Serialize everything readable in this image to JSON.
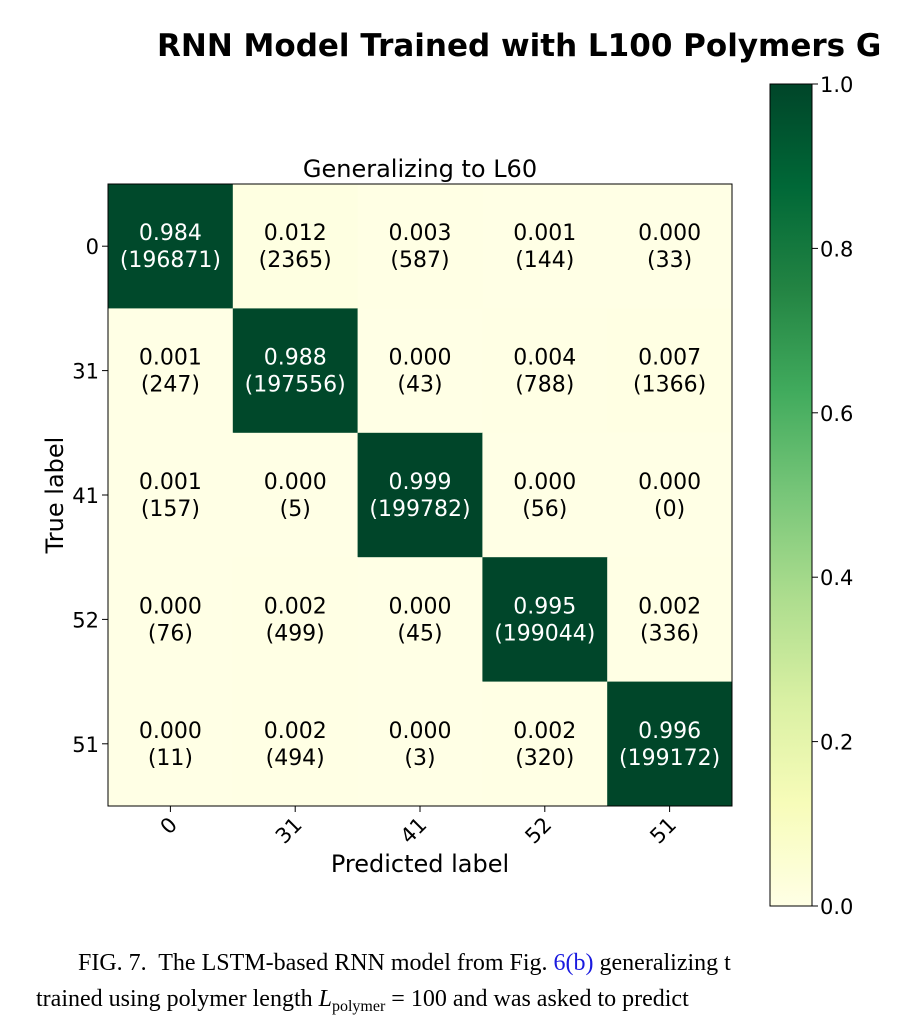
{
  "chart_data": {
    "type": "heatmap",
    "suptitle": "RNN Model Trained with L100 Polymers G",
    "title": "Generalizing to L60",
    "xlabel": "Predicted label",
    "ylabel": "True label",
    "x_categories": [
      "0",
      "31",
      "41",
      "52",
      "51"
    ],
    "y_categories": [
      "0",
      "31",
      "41",
      "52",
      "51"
    ],
    "values": [
      [
        0.984,
        0.012,
        0.003,
        0.001,
        0.0
      ],
      [
        0.001,
        0.988,
        0.0,
        0.004,
        0.007
      ],
      [
        0.001,
        0.0,
        0.999,
        0.0,
        0.0
      ],
      [
        0.0,
        0.002,
        0.0,
        0.995,
        0.002
      ],
      [
        0.0,
        0.002,
        0.0,
        0.002,
        0.996
      ]
    ],
    "value_labels": [
      [
        "0.984",
        "0.012",
        "0.003",
        "0.001",
        "0.000"
      ],
      [
        "0.001",
        "0.988",
        "0.000",
        "0.004",
        "0.007"
      ],
      [
        "0.001",
        "0.000",
        "0.999",
        "0.000",
        "0.000"
      ],
      [
        "0.000",
        "0.002",
        "0.000",
        "0.995",
        "0.002"
      ],
      [
        "0.000",
        "0.002",
        "0.000",
        "0.002",
        "0.996"
      ]
    ],
    "counts": [
      [
        "(196871)",
        "(2365)",
        "(587)",
        "(144)",
        "(33)"
      ],
      [
        "(247)",
        "(197556)",
        "(43)",
        "(788)",
        "(1366)"
      ],
      [
        "(157)",
        "(5)",
        "(199782)",
        "(56)",
        "(0)"
      ],
      [
        "(76)",
        "(499)",
        "(45)",
        "(199044)",
        "(336)"
      ],
      [
        "(11)",
        "(494)",
        "(3)",
        "(320)",
        "(199172)"
      ]
    ],
    "colorbar": {
      "range": [
        0,
        1
      ],
      "ticks": [
        0.0,
        0.2,
        0.4,
        0.6,
        0.8,
        1.0
      ],
      "tick_labels": [
        "0.0",
        "0.2",
        "0.4",
        "0.6",
        "0.8",
        "1.0"
      ],
      "colormap": "YlGn",
      "colors": [
        "#ffffe5",
        "#f7fcb9",
        "#d9f0a3",
        "#addd8e",
        "#78c679",
        "#41ab5d",
        "#238443",
        "#006837",
        "#004529"
      ]
    }
  },
  "caption": {
    "fig_label": "FIG. 7.",
    "line1_a": "The LSTM-based RNN model from Fig.",
    "line1_ref": "6(b)",
    "line1_b": "generalizing t",
    "line2_a": "trained using polymer length",
    "line2_var": "L",
    "line2_sub": "polymer",
    "line2_b": "= 100 and was asked to predict"
  }
}
